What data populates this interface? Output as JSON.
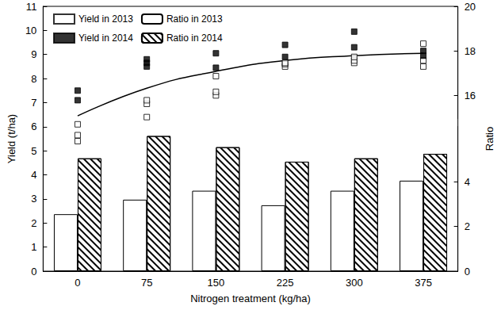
{
  "chart_data": {
    "type": "bar",
    "x_label": "Nitrogen treatment (kg/ha)",
    "y_label": "Yield (t/ha)",
    "y2_label": "Ratio",
    "categories": [
      "0",
      "75",
      "150",
      "225",
      "300",
      "375"
    ],
    "ylim": [
      0,
      11
    ],
    "yticks": [
      0,
      1,
      2,
      3,
      4,
      5,
      6,
      7,
      8,
      9,
      10,
      11
    ],
    "y2lim": [
      0,
      20
    ],
    "y2ticks": [
      0,
      2,
      4,
      16,
      18,
      20
    ],
    "grid": false,
    "legend": "upper left",
    "series": [
      {
        "name": "Yield in 2013",
        "type": "scatter",
        "marker": "square_open",
        "color": "#000000",
        "values": [
          [
            5.4,
            5.65,
            6.1
          ],
          [
            6.4,
            6.95,
            7.1
          ],
          [
            7.3,
            7.45,
            8.1
          ],
          [
            8.5,
            8.6,
            8.65
          ],
          [
            8.65,
            8.75,
            8.9
          ],
          [
            8.5,
            8.75,
            9.45
          ]
        ]
      },
      {
        "name": "Ratio in 2013",
        "type": "bar",
        "axis": "y2",
        "color": "#ffffff",
        "values": [
          2.55,
          3.2,
          3.6,
          2.95,
          3.6,
          4.05
        ]
      },
      {
        "name": "Yield in 2014",
        "type": "scatter",
        "marker": "square",
        "color": "#000000",
        "values": [
          [
            7.1,
            7.5
          ],
          [
            8.5,
            8.65,
            8.8
          ],
          [
            8.45,
            9.05
          ],
          [
            8.9,
            9.4
          ],
          [
            9.3,
            9.95
          ],
          [
            8.95,
            9.15
          ]
        ]
      },
      {
        "name": "Ratio in 2014",
        "type": "bar",
        "axis": "y2",
        "color": "#ffffff",
        "line_style": "hatched",
        "values": [
          5.05,
          6.05,
          5.55,
          4.9,
          5.05,
          5.25
        ]
      },
      {
        "type": "line",
        "color": "#000000",
        "marker": "none",
        "values": [
          6.45,
          7.6,
          8.3,
          8.75,
          8.95,
          9.05
        ]
      }
    ]
  }
}
